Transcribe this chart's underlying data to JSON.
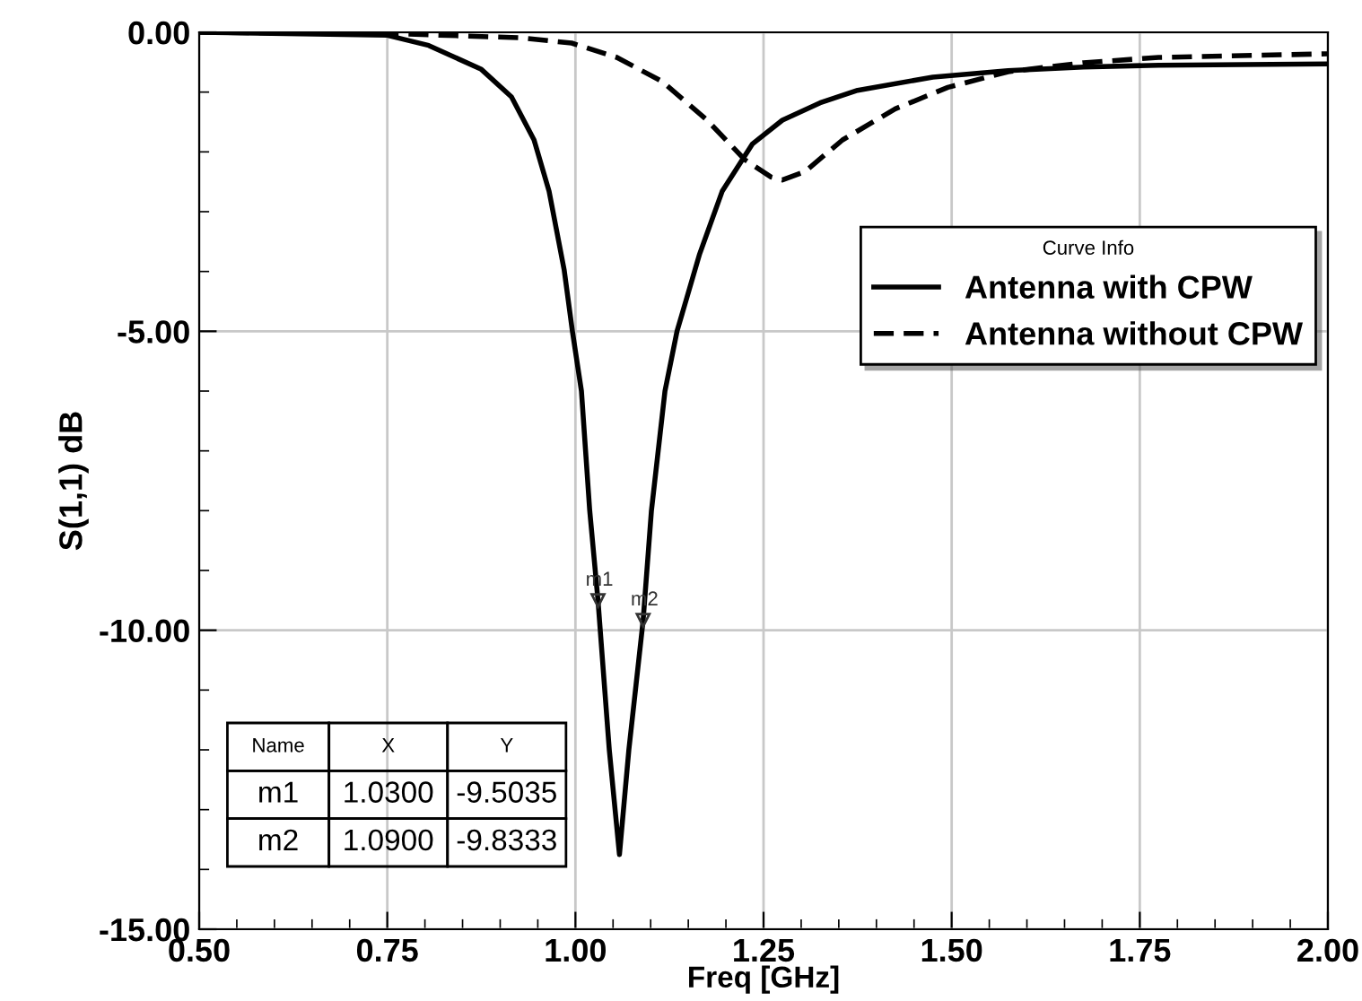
{
  "chart_data": {
    "type": "line",
    "xlabel": "Freq [GHz]",
    "ylabel": "S(1,1) dB",
    "legend_title": "Curve Info",
    "xlim": [
      0.5,
      2.0
    ],
    "ylim": [
      -15.0,
      0.0
    ],
    "xticks": [
      {
        "value": 0.5,
        "label": "0.50"
      },
      {
        "value": 0.75,
        "label": "0.75"
      },
      {
        "value": 1.0,
        "label": "1.00"
      },
      {
        "value": 1.25,
        "label": "1.25"
      },
      {
        "value": 1.5,
        "label": "1.50"
      },
      {
        "value": 1.75,
        "label": "1.75"
      },
      {
        "value": 2.0,
        "label": "2.00"
      }
    ],
    "yticks": [
      {
        "value": -15.0,
        "label": "-15.00"
      },
      {
        "value": -10.0,
        "label": "-10.00"
      },
      {
        "value": -5.0,
        "label": "-5.00"
      },
      {
        "value": 0.0,
        "label": "0.00"
      }
    ],
    "grid": true,
    "legend": "top right",
    "series": [
      {
        "name": "Antenna with CPW",
        "color": "#000000",
        "line_style": "solid",
        "x": [
          0.5,
          0.75,
          0.805,
          0.875,
          0.915,
          0.945,
          0.965,
          0.985,
          0.996,
          1.008,
          1.019,
          1.03,
          1.045,
          1.0585,
          1.071,
          1.09,
          1.101,
          1.119,
          1.135,
          1.165,
          1.195,
          1.235,
          1.275,
          1.325,
          1.375,
          1.475,
          1.575,
          1.675,
          1.775,
          2.0
        ],
        "values": [
          0.0,
          -0.05,
          -0.22,
          -0.62,
          -1.08,
          -1.8,
          -2.66,
          -3.97,
          -5.0,
          -6.0,
          -8.0,
          -9.5035,
          -12.0,
          -13.75,
          -12.0,
          -9.8333,
          -8.0,
          -6.0,
          -5.0,
          -3.71,
          -2.66,
          -1.87,
          -1.47,
          -1.18,
          -0.97,
          -0.75,
          -0.64,
          -0.58,
          -0.55,
          -0.53
        ]
      },
      {
        "name": "Antenna without CPW",
        "color": "#000000",
        "line_style": "dashed",
        "x": [
          0.5,
          0.775,
          0.925,
          0.995,
          1.055,
          1.115,
          1.175,
          1.225,
          1.26,
          1.275,
          1.305,
          1.355,
          1.425,
          1.495,
          1.575,
          1.675,
          1.775,
          2.0
        ],
        "values": [
          0.0,
          -0.03,
          -0.09,
          -0.18,
          -0.42,
          -0.82,
          -1.47,
          -2.13,
          -2.42,
          -2.47,
          -2.33,
          -1.8,
          -1.28,
          -0.92,
          -0.66,
          -0.51,
          -0.42,
          -0.36
        ]
      }
    ],
    "annotations": [
      {
        "text": "m1",
        "x": 1.03,
        "y": -9.5035
      },
      {
        "text": "m2",
        "x": 1.09,
        "y": -9.8333
      },
      "Name",
      "X",
      "Y",
      "m1",
      "1.0300",
      "-9.5035",
      "m2",
      "1.0900",
      "-9.8333"
    ]
  }
}
